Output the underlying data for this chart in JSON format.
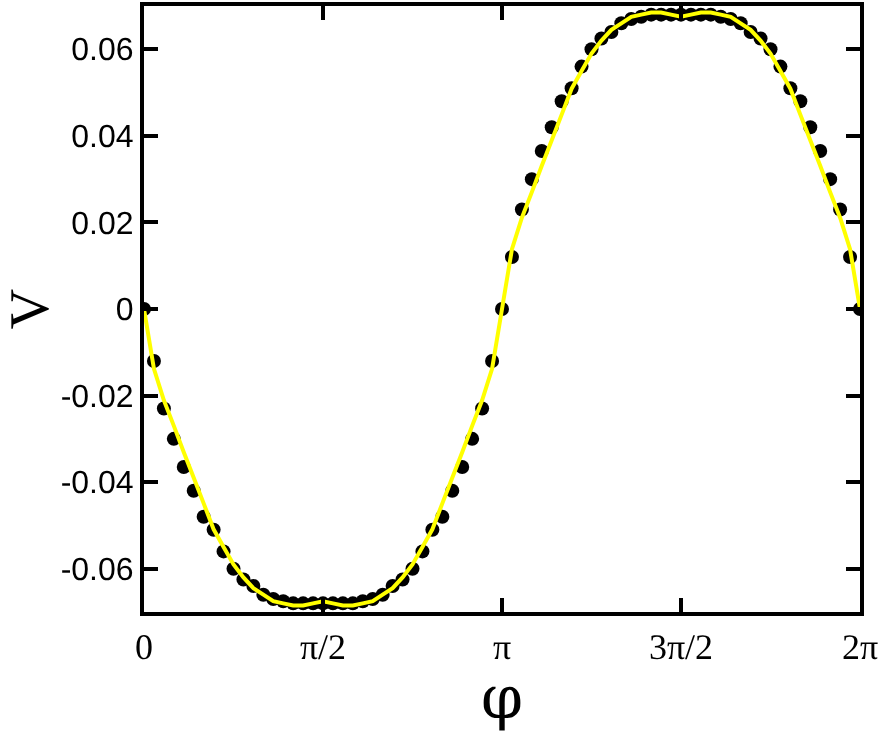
{
  "chart_data": {
    "type": "scatter",
    "xlabel": "φ",
    "ylabel": "V",
    "x": [
      0,
      0.0873,
      0.1745,
      0.2618,
      0.3491,
      0.4363,
      0.5236,
      0.6109,
      0.6981,
      0.7854,
      0.8727,
      0.9599,
      1.0472,
      1.1345,
      1.2217,
      1.309,
      1.3963,
      1.4835,
      1.5708,
      1.6581,
      1.7453,
      1.8326,
      1.9199,
      2.0071,
      2.0944,
      2.1817,
      2.2689,
      2.3562,
      2.4435,
      2.5307,
      2.618,
      2.7053,
      2.7925,
      2.8798,
      2.9671,
      3.0543,
      3.1416,
      3.2289,
      3.3161,
      3.4034,
      3.4907,
      3.5779,
      3.6652,
      3.7525,
      3.8397,
      3.927,
      4.0143,
      4.1015,
      4.1888,
      4.2761,
      4.3633,
      4.4506,
      4.5379,
      4.6251,
      4.7124,
      4.7997,
      4.8869,
      4.9742,
      5.0615,
      5.1487,
      5.236,
      5.3233,
      5.4105,
      5.4978,
      5.5851,
      5.6723,
      5.7596,
      5.8469,
      5.9341,
      6.0214,
      6.1087,
      6.1959,
      6.2832
    ],
    "series": [
      {
        "color": "#000000",
        "marker": "circle",
        "values": [
          0,
          -0.012,
          -0.023,
          -0.03,
          -0.0365,
          -0.042,
          -0.048,
          -0.051,
          -0.056,
          -0.06,
          -0.0625,
          -0.064,
          -0.066,
          -0.067,
          -0.0675,
          -0.068,
          -0.068,
          -0.068,
          -0.068,
          -0.068,
          -0.068,
          -0.068,
          -0.0675,
          -0.067,
          -0.066,
          -0.064,
          -0.0625,
          -0.06,
          -0.056,
          -0.051,
          -0.048,
          -0.042,
          -0.0365,
          -0.03,
          -0.023,
          -0.012,
          0,
          0.012,
          0.023,
          0.03,
          0.0365,
          0.042,
          0.048,
          0.051,
          0.056,
          0.06,
          0.0625,
          0.064,
          0.066,
          0.067,
          0.0675,
          0.068,
          0.068,
          0.068,
          0.068,
          0.068,
          0.068,
          0.068,
          0.0675,
          0.067,
          0.066,
          0.064,
          0.0625,
          0.06,
          0.056,
          0.051,
          0.048,
          0.042,
          0.0365,
          0.03,
          0.023,
          0.012,
          0
        ]
      },
      {
        "type": "line",
        "color": "#ffff00",
        "line_style": "solid",
        "values": [
          0,
          -0.0138,
          -0.0211,
          -0.027,
          -0.0331,
          -0.039,
          -0.0449,
          -0.0509,
          -0.055,
          -0.059,
          -0.062,
          -0.0645,
          -0.066,
          -0.0675,
          -0.068,
          -0.0685,
          -0.0685,
          -0.068,
          -0.0675,
          -0.068,
          -0.0685,
          -0.0685,
          -0.068,
          -0.0675,
          -0.066,
          -0.0645,
          -0.062,
          -0.059,
          -0.055,
          -0.0509,
          -0.0449,
          -0.039,
          -0.0331,
          -0.027,
          -0.0211,
          -0.0138,
          0,
          0.0138,
          0.0211,
          0.027,
          0.0331,
          0.039,
          0.0449,
          0.0509,
          0.055,
          0.059,
          0.062,
          0.0645,
          0.066,
          0.0675,
          0.068,
          0.0685,
          0.0685,
          0.068,
          0.0675,
          0.068,
          0.0685,
          0.0685,
          0.068,
          0.0675,
          0.066,
          0.0645,
          0.062,
          0.059,
          0.055,
          0.0509,
          0.0449,
          0.039,
          0.0331,
          0.027,
          0.0211,
          0.0138,
          0
        ]
      }
    ],
    "xlim": [
      0,
      6.2832
    ],
    "ylim": [
      -0.07,
      0.07
    ],
    "xticks": [
      {
        "value": 0,
        "label": "0"
      },
      {
        "value": 1.5708,
        "label": "π/2"
      },
      {
        "value": 3.1416,
        "label": "π"
      },
      {
        "value": 4.7124,
        "label": "3π/2"
      },
      {
        "value": 6.2832,
        "label": "2π"
      }
    ],
    "yticks": [
      -0.06,
      -0.04,
      -0.02,
      0,
      0.02,
      0.04,
      0.06
    ],
    "grid": false
  }
}
